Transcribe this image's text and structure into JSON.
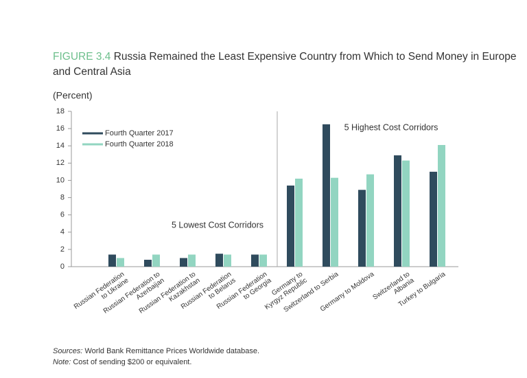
{
  "chart_data": {
    "type": "bar",
    "figure_label": "FIGURE 3.4",
    "title": "Russia Remained the Least Expensive Country from Which to Send Money in Europe and Central Asia",
    "y_label": "(Percent)",
    "categories": [
      [
        "Russian Federation",
        "to Ukraine"
      ],
      [
        "Russian Federation to",
        "Azerbaijan"
      ],
      [
        "Russian Federation to",
        "Kazakhstan"
      ],
      [
        "Russian Federation",
        "to Belarus"
      ],
      [
        "Russian Federation",
        "to Georgia"
      ],
      [
        "Germany to",
        "Kyrgyz Republic"
      ],
      [
        "Switzerland to Serbia"
      ],
      [
        "Germany to Moldova"
      ],
      [
        "Switzerland to",
        "Albania"
      ],
      [
        "Turkey to Bulgaria"
      ]
    ],
    "series": [
      {
        "name": "Fourth Quarter 2017",
        "color": "#2f4b5d",
        "values": [
          1.4,
          0.8,
          1.0,
          1.5,
          1.4,
          9.4,
          16.5,
          8.9,
          12.9,
          11.0
        ]
      },
      {
        "name": "Fourth Quarter 2018",
        "color": "#92d5c1",
        "values": [
          1.0,
          1.4,
          1.4,
          1.4,
          1.4,
          10.2,
          10.3,
          10.7,
          12.3,
          14.1
        ]
      }
    ],
    "ylim": [
      0,
      18
    ],
    "yticks": [
      0,
      2,
      4,
      6,
      8,
      10,
      12,
      14,
      16,
      18
    ],
    "annotations": [
      "5 Lowest Cost Corridors",
      "5 Highest Cost Corridors"
    ],
    "legend": "upper left",
    "notes": [
      {
        "label": "Sources:",
        "text": "World Bank Remittance Prices Worldwide database."
      },
      {
        "label": "Note:",
        "text": "Cost of sending $200 or equivalent."
      }
    ]
  }
}
